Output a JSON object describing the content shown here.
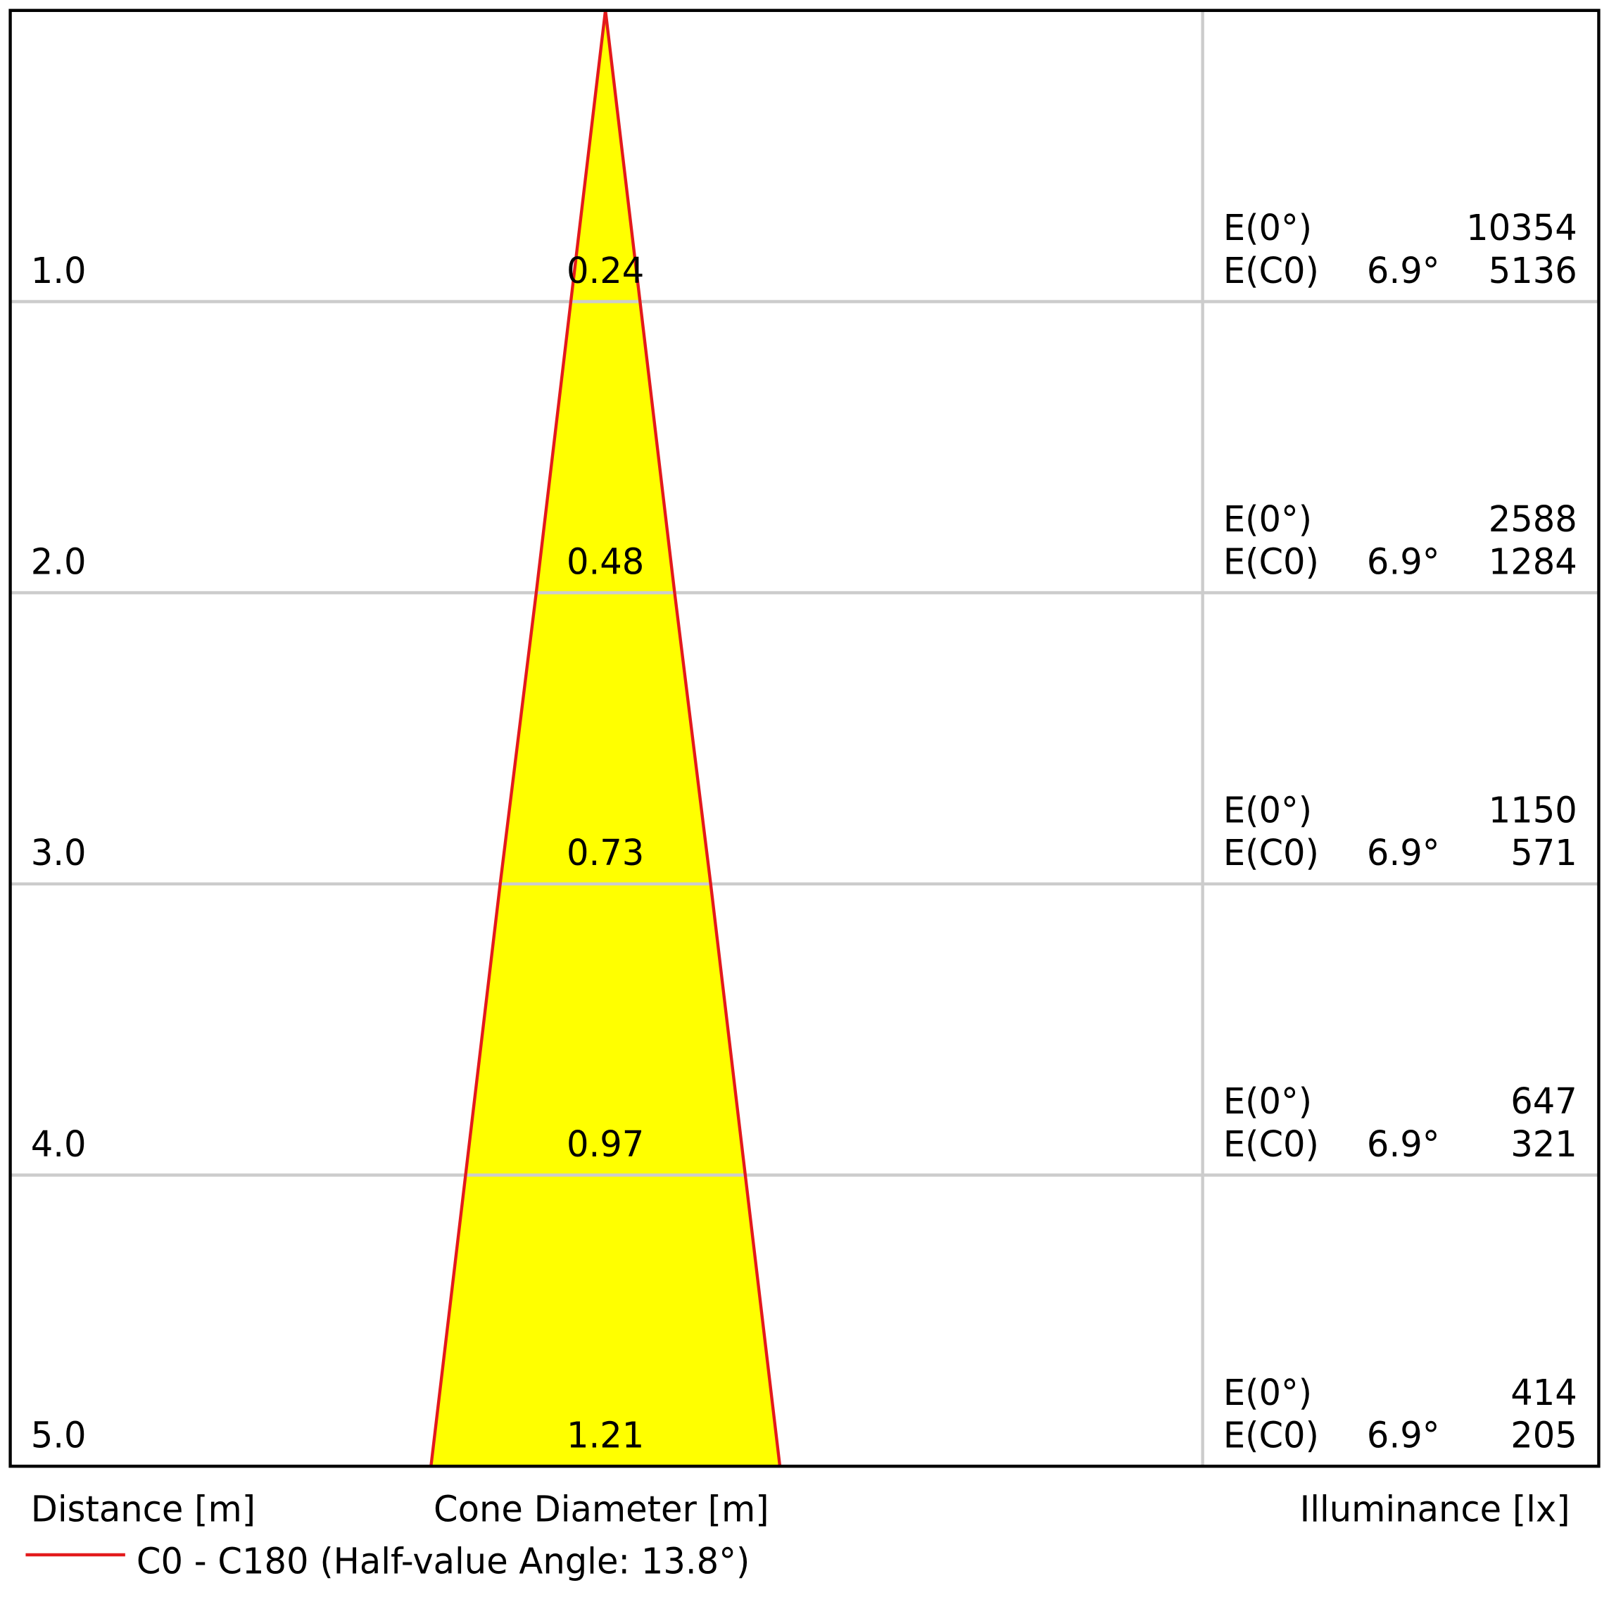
{
  "chart_data": {
    "type": "cone",
    "distance_label": "Distance [m]",
    "diameter_label": "Cone Diameter [m]",
    "illuminance_label": "Illuminance [lx]",
    "legend": {
      "name": "C0 - C180 (Half-value Angle: 13.8°)",
      "color": "#e31a1c"
    },
    "fill_color": "#ffff00",
    "ylim": [
      0,
      5
    ],
    "distances": [
      {
        "value": 1,
        "label": "1.0"
      },
      {
        "value": 2,
        "label": "2.0"
      },
      {
        "value": 3,
        "label": "3.0"
      },
      {
        "value": 4,
        "label": "4.0"
      },
      {
        "value": 5,
        "label": "5.0"
      }
    ],
    "diameters": [
      0.24,
      0.48,
      0.73,
      0.97,
      1.21
    ],
    "e0_label": "E(0°)",
    "ec0_label": "E(C0)",
    "angle_label": "6.9°",
    "e0": [
      10354,
      2588,
      1150,
      647,
      414
    ],
    "ec0": [
      5136,
      1284,
      571,
      321,
      205
    ]
  }
}
